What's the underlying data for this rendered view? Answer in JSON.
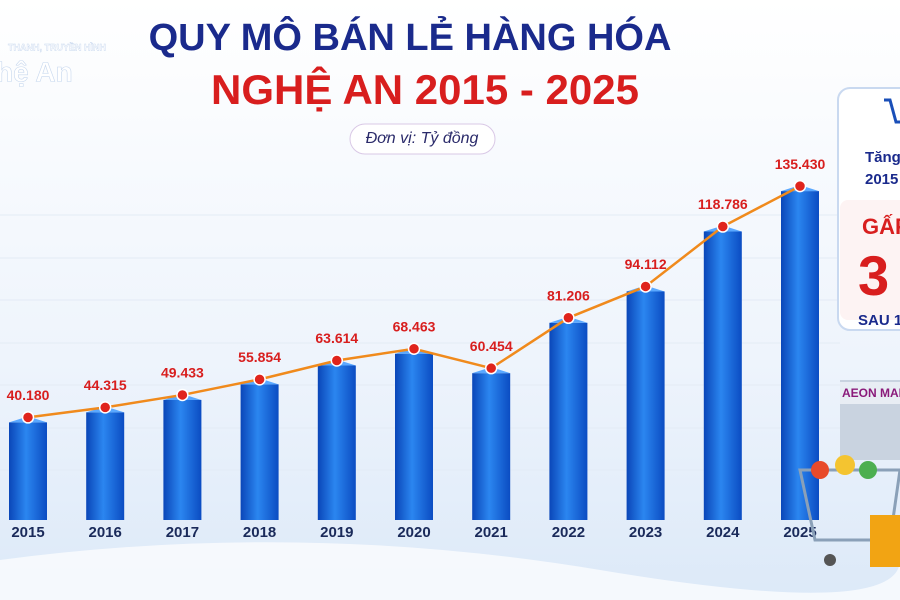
{
  "chart_data": {
    "type": "bar",
    "title": "QUY MÔ BÁN LẺ HÀNG HÓA",
    "subtitle": "NGHỆ AN 2015 - 2025",
    "unit": "Đơn vị: Tỷ đồng",
    "categories": [
      "2015",
      "2016",
      "2017",
      "2018",
      "2019",
      "2020",
      "2021",
      "2022",
      "2023",
      "2024",
      "2025"
    ],
    "values": [
      40180,
      44315,
      49433,
      55854,
      63614,
      68463,
      60454,
      81206,
      94112,
      118786,
      135430
    ],
    "value_labels": [
      "40.180",
      "44.315",
      "49.433",
      "55.854",
      "63.614",
      "68.463",
      "60.454",
      "81.206",
      "94.112",
      "118.786",
      "135.430"
    ],
    "ylim": [
      0,
      140000
    ],
    "bar_color": "#1565e0",
    "line_color": "#f08a1c",
    "point_color": "#e0241c",
    "label_color": "#d81e1e"
  },
  "logo": {
    "line1": "THANH, TRUYỀN HÌNH",
    "line2": "hệ An"
  },
  "side_panel": {
    "lines": [
      "Tăng",
      "2015",
      "GẤP",
      "3",
      "SAU 1"
    ]
  },
  "store_sign": "AEON MALL"
}
